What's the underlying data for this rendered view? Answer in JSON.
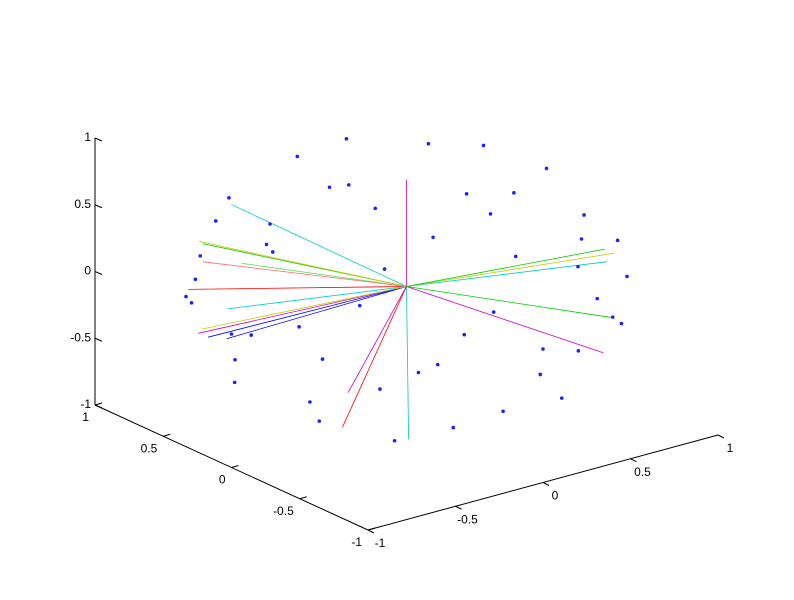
{
  "chart_data": {
    "type": "scatter3d",
    "xlim": [
      -1,
      1
    ],
    "ylim": [
      -1,
      1
    ],
    "zlim": [
      -1,
      1
    ],
    "xticks": [
      -1,
      -0.5,
      0,
      0.5,
      1
    ],
    "yticks": [
      -1,
      -0.5,
      0,
      0.5,
      1
    ],
    "zticks": [
      -1,
      -0.5,
      0,
      0.5,
      1
    ],
    "points": {
      "color": "#1f1fff",
      "x": [
        0.44,
        0,
        -0.44,
        0,
        0.8,
        0.57,
        0,
        -0.57,
        -0.8,
        -0.57,
        0,
        0.57,
        0.91,
        0.38,
        -0.38,
        -0.91,
        -0.91,
        -0.38,
        0.38,
        0.91,
        0.98,
        0.69,
        0,
        -0.69,
        -0.98,
        -0.69,
        0,
        0.69,
        0.74,
        0.31,
        -0.31,
        -0.74,
        -0.74,
        -0.31,
        0.31,
        0.74,
        0.31,
        -0.31,
        -0.31,
        0.31,
        1,
        0.87,
        0.5,
        0,
        -0.5,
        -0.87,
        -1,
        -0.87,
        -0.5,
        0,
        0.5,
        0.87
      ],
      "y": [
        0,
        0.44,
        0,
        -0.44,
        0,
        0.57,
        0.8,
        0.57,
        0,
        -0.57,
        -0.8,
        -0.57,
        0.38,
        0.91,
        0.91,
        0.38,
        -0.38,
        -0.91,
        -0.91,
        -0.38,
        0,
        0.69,
        0.98,
        0.69,
        0,
        -0.69,
        -0.98,
        -0.69,
        0.31,
        0.74,
        0.74,
        0.31,
        -0.31,
        -0.74,
        -0.74,
        -0.31,
        0.31,
        0.31,
        -0.31,
        -0.31,
        0,
        0.5,
        0.87,
        1,
        0.87,
        0.5,
        0,
        -0.5,
        -0.87,
        -1,
        -0.87,
        -0.5
      ],
      "z": [
        0.9,
        0.9,
        0.9,
        0.9,
        0.6,
        0.6,
        0.6,
        0.6,
        0.6,
        0.6,
        0.6,
        0.6,
        0.2,
        0.2,
        0.2,
        0.2,
        0.2,
        0.2,
        0.2,
        0.2,
        -0.2,
        -0.2,
        -0.2,
        -0.2,
        -0.2,
        -0.2,
        -0.2,
        -0.2,
        -0.6,
        -0.6,
        -0.6,
        -0.6,
        -0.6,
        -0.6,
        -0.6,
        -0.6,
        -0.9,
        -0.9,
        -0.9,
        -0.9,
        0,
        0,
        0,
        0,
        0,
        0,
        0,
        0,
        0,
        0,
        0,
        0
      ]
    },
    "segments": {
      "origin": [
        0,
        0,
        0
      ],
      "x": [
        -0.5,
        -0.7,
        -0.3,
        -0.8,
        -0.6,
        -0.9,
        -0.2,
        -0.85,
        -0.4,
        0.6,
        0.8,
        0.5,
        0.9,
        0,
        -0.6,
        -0.3,
        -0.95,
        -0.7,
        0.7,
        -0.1
      ],
      "y": [
        0.85,
        0.7,
        0.9,
        0.5,
        0.75,
        0.3,
        0.95,
        0.4,
        0.8,
        -0.7,
        -0.5,
        -0.8,
        -0.3,
        0,
        -0.3,
        -0.4,
        0.1,
        0.6,
        -0.6,
        0.3
      ],
      "z": [
        0.1,
        -0.1,
        0.3,
        -0.3,
        0.2,
        -0.2,
        -0.2,
        0.3,
        -0.4,
        0.3,
        0.2,
        -0.3,
        0.1,
        0.8,
        -0.7,
        -0.85,
        -0.1,
        -0.35,
        -0.2,
        -0.9
      ],
      "colors": [
        "#00cc00",
        "#ff0000",
        "#00cccc",
        "#cc00cc",
        "#cccc00",
        "#0000ff",
        "#66dd66",
        "#ff6666",
        "#00cccc",
        "#00cccc",
        "#cccc00",
        "#cc00cc",
        "#00cc00",
        "#cc00cc",
        "#ff0000",
        "#00cccc",
        "#0000ff",
        "#cccc00",
        "#00cc00",
        "#cc00cc"
      ]
    }
  }
}
